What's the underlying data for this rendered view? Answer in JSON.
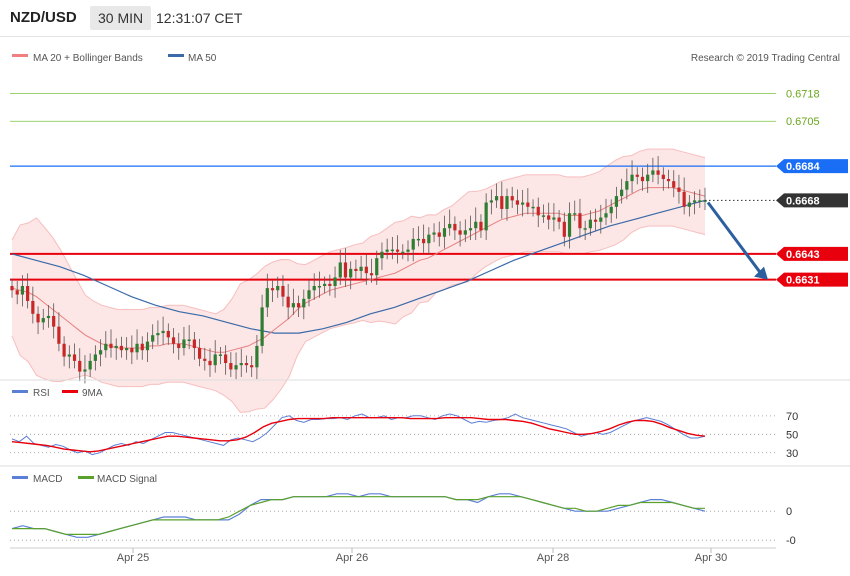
{
  "header": {
    "symbol": "NZD/USD",
    "timeframe": "30 MIN",
    "time": "12:31:07 CET"
  },
  "copyright": "Research © 2019 Trading Central",
  "colors": {
    "bollinger": "#f08080",
    "ma50": "#3a6aa8",
    "up_candle": "#2e7d32",
    "down_candle": "#c62828",
    "level_blue": "#1a6ef5",
    "level_red": "#e8000d",
    "level_green": "#7cc242",
    "current": "#333333",
    "rsi": "#5b7fd6",
    "ma9": "#e8000d",
    "macd": "#5b7fd6",
    "macd_signal": "#5aa02c",
    "arrow": "#2c5f9e"
  },
  "chart_data": [
    {
      "type": "line",
      "title": "NZD/USD",
      "legend": [
        {
          "name": "MA 20 + Bollinger Bands"
        },
        {
          "name": "MA 50"
        }
      ],
      "x_labels": [
        "Apr 25",
        "Apr 26",
        "Apr 28",
        "Apr 30"
      ],
      "ylim": [
        0.6585,
        0.6728
      ],
      "levels": [
        {
          "value": 0.6718,
          "label": "0.6718",
          "kind": "resistance"
        },
        {
          "value": 0.6705,
          "label": "0.6705",
          "kind": "resistance"
        },
        {
          "value": 0.6684,
          "label": "0.6684",
          "kind": "pivot"
        },
        {
          "value": 0.6643,
          "label": "0.6643",
          "kind": "support"
        },
        {
          "value": 0.6631,
          "label": "0.6631",
          "kind": "support"
        }
      ],
      "current_price": {
        "value": 0.6668,
        "label": "0.6668"
      },
      "series": [
        {
          "name": "close",
          "values": [
            0.6626,
            0.6624,
            0.6628,
            0.6621,
            0.6615,
            0.6611,
            0.6613,
            0.6614,
            0.6609,
            0.6601,
            0.6595,
            0.6596,
            0.6593,
            0.6588,
            0.6589,
            0.6593,
            0.6596,
            0.6598,
            0.6601,
            0.6599,
            0.66,
            0.6598,
            0.6599,
            0.6597,
            0.6601,
            0.6598,
            0.6602,
            0.6605,
            0.6606,
            0.6607,
            0.6604,
            0.6601,
            0.6599,
            0.6603,
            0.6603,
            0.6599,
            0.6594,
            0.6593,
            0.6591,
            0.6596,
            0.6596,
            0.6592,
            0.6589,
            0.6591,
            0.6592,
            0.6591,
            0.659,
            0.66,
            0.6618,
            0.6627,
            0.6626,
            0.6628,
            0.6623,
            0.6618,
            0.662,
            0.6618,
            0.6622,
            0.6626,
            0.6628,
            0.6628,
            0.6629,
            0.6628,
            0.6632,
            0.6639,
            0.6632,
            0.6636,
            0.6635,
            0.6637,
            0.6634,
            0.6633,
            0.6641,
            0.6644,
            0.6645,
            0.6645,
            0.6644,
            0.6644,
            0.6645,
            0.665,
            0.665,
            0.6648,
            0.6652,
            0.6653,
            0.6651,
            0.6655,
            0.6657,
            0.6654,
            0.6652,
            0.6654,
            0.6655,
            0.6658,
            0.6654,
            0.6667,
            0.6668,
            0.667,
            0.6664,
            0.667,
            0.6668,
            0.6666,
            0.6667,
            0.6665,
            0.6665,
            0.6661,
            0.6661,
            0.6659,
            0.666,
            0.6658,
            0.6651,
            0.6662,
            0.6662,
            0.6655,
            0.6655,
            0.6659,
            0.6658,
            0.666,
            0.6662,
            0.6665,
            0.667,
            0.6673,
            0.6677,
            0.668,
            0.6679,
            0.6677,
            0.668,
            0.6682,
            0.668,
            0.6678,
            0.6677,
            0.6674,
            0.6672,
            0.6665,
            0.6667,
            0.6668,
            0.6668,
            0.6668
          ]
        },
        {
          "name": "MA 20",
          "values": [
            0.6627,
            0.6626,
            0.6625,
            0.6623,
            0.662,
            0.6617,
            0.6614,
            0.6611,
            0.6608,
            0.6605,
            0.6603,
            0.6601,
            0.66,
            0.6599,
            0.6599,
            0.6599,
            0.6599,
            0.66,
            0.66,
            0.6601,
            0.6601,
            0.6601,
            0.66,
            0.6599,
            0.6598,
            0.6597,
            0.6597,
            0.6598,
            0.6599,
            0.66,
            0.6602,
            0.6604,
            0.6607,
            0.661,
            0.6613,
            0.6617,
            0.662,
            0.6622,
            0.6624,
            0.6626,
            0.6627,
            0.6628,
            0.6629,
            0.663,
            0.6631,
            0.6632,
            0.6633,
            0.6634,
            0.6636,
            0.6638,
            0.664,
            0.6641,
            0.6643,
            0.6645,
            0.6647,
            0.6649,
            0.6651,
            0.6653,
            0.6655,
            0.6657,
            0.6659,
            0.666,
            0.6661,
            0.6662,
            0.6662,
            0.6662,
            0.6662,
            0.6662,
            0.6661,
            0.6661,
            0.6661,
            0.6662,
            0.6663,
            0.6665,
            0.6667,
            0.6669,
            0.6671,
            0.6673,
            0.6674,
            0.6674,
            0.6674,
            0.6674,
            0.6673,
            0.6672,
            0.6671,
            0.667
          ]
        },
        {
          "name": "MA 50",
          "values": [
            0.6643,
            0.664,
            0.6637,
            0.6633,
            0.6628,
            0.6623,
            0.6619,
            0.6616,
            0.6614,
            0.6611,
            0.6608,
            0.6606,
            0.6606,
            0.6608,
            0.6611,
            0.6615,
            0.6618,
            0.6622,
            0.6626,
            0.663,
            0.6635,
            0.664,
            0.6644,
            0.6648,
            0.6652,
            0.6656,
            0.6659,
            0.6662,
            0.6665,
            0.6668
          ]
        }
      ]
    },
    {
      "type": "line",
      "legend": [
        {
          "name": "RSI"
        },
        {
          "name": "9MA"
        }
      ],
      "y_ticks": [
        70,
        50,
        30
      ],
      "ylim": [
        20,
        85
      ],
      "series": [
        {
          "name": "RSI",
          "values": [
            45,
            42,
            48,
            40,
            38,
            36,
            39,
            37,
            33,
            30,
            32,
            28,
            30,
            34,
            38,
            40,
            38,
            42,
            40,
            44,
            48,
            52,
            52,
            50,
            48,
            46,
            44,
            42,
            40,
            38,
            44,
            46,
            44,
            42,
            46,
            52,
            60,
            68,
            70,
            65,
            63,
            66,
            66,
            67,
            67,
            68,
            66,
            70,
            72,
            68,
            68,
            70,
            66,
            68,
            68,
            70,
            70,
            68,
            66,
            70,
            72,
            70,
            66,
            62,
            64,
            63,
            65,
            66,
            68,
            72,
            68,
            66,
            64,
            62,
            60,
            58,
            56,
            52,
            48,
            50,
            52,
            50,
            52,
            56,
            60,
            64,
            66,
            68,
            66,
            64,
            60,
            55,
            50,
            46,
            46,
            48
          ]
        },
        {
          "name": "9MA",
          "values": [
            42,
            41,
            40,
            39,
            38,
            36,
            34,
            33,
            32,
            31,
            32,
            34,
            36,
            38,
            40,
            42,
            44,
            46,
            48,
            48,
            47,
            46,
            45,
            44,
            43,
            43,
            44,
            47,
            52,
            58,
            62,
            64,
            66,
            67,
            67,
            67,
            67,
            68,
            68,
            68,
            68,
            68,
            68,
            68,
            68,
            68,
            67,
            67,
            67,
            67,
            68,
            68,
            68,
            68,
            67,
            66,
            66,
            66,
            65,
            64,
            62,
            59,
            56,
            54,
            52,
            50,
            50,
            51,
            53,
            56,
            60,
            63,
            65,
            65,
            64,
            61,
            57,
            54,
            51,
            49,
            48
          ]
        }
      ]
    },
    {
      "type": "line",
      "legend": [
        {
          "name": "MACD"
        },
        {
          "name": "MACD Signal"
        }
      ],
      "y_ticks": [
        0,
        -0.001
      ],
      "y_tick_labels": [
        "0",
        "-0"
      ],
      "ylim": [
        -0.0012,
        0.0008
      ],
      "series": [
        {
          "name": "MACD",
          "values": [
            -0.0006,
            -0.0005,
            -0.0006,
            -0.0006,
            -0.0007,
            -0.0008,
            -0.0009,
            -0.0009,
            -0.0008,
            -0.0007,
            -0.0006,
            -0.0005,
            -0.0004,
            -0.0003,
            -0.0002,
            -0.0002,
            -0.0002,
            -0.0003,
            -0.0003,
            -0.0003,
            -0.0003,
            -0.0001,
            0.0002,
            0.0004,
            0.0004,
            0.0004,
            0.0005,
            0.0005,
            0.0005,
            0.0005,
            0.0006,
            0.0006,
            0.0005,
            0.0006,
            0.0006,
            0.0005,
            0.0005,
            0.0005,
            0.0005,
            0.0005,
            0.0005,
            0.0004,
            0.0004,
            0.0003,
            0.0005,
            0.0006,
            0.0006,
            0.0005,
            0.0004,
            0.0003,
            0.0002,
            0.0001,
            0.0,
            0.0,
            0.0,
            0.0,
            0.0001,
            0.0002,
            0.0003,
            0.0004,
            0.0004,
            0.0003,
            0.0002,
            0.0001,
            0.0
          ]
        },
        {
          "name": "MACD Signal",
          "values": [
            -0.0006,
            -0.0006,
            -0.0006,
            -0.0006,
            -0.0007,
            -0.0008,
            -0.0008,
            -0.0008,
            -0.0008,
            -0.0007,
            -0.0006,
            -0.0005,
            -0.0004,
            -0.0003,
            -0.0003,
            -0.0003,
            -0.0003,
            -0.0003,
            -0.0003,
            -0.0003,
            -0.0002,
            0.0,
            0.0002,
            0.0003,
            0.0004,
            0.0004,
            0.0005,
            0.0005,
            0.0005,
            0.0005,
            0.0005,
            0.0005,
            0.0005,
            0.0005,
            0.0005,
            0.0005,
            0.0005,
            0.0005,
            0.0005,
            0.0005,
            0.0005,
            0.0004,
            0.0004,
            0.0004,
            0.0005,
            0.0005,
            0.0005,
            0.0005,
            0.0004,
            0.0003,
            0.0002,
            0.0001,
            0.0001,
            0.0,
            0.0,
            0.0001,
            0.0002,
            0.0002,
            0.0003,
            0.0003,
            0.0003,
            0.0003,
            0.0002,
            0.0001,
            0.0001
          ]
        }
      ]
    }
  ]
}
